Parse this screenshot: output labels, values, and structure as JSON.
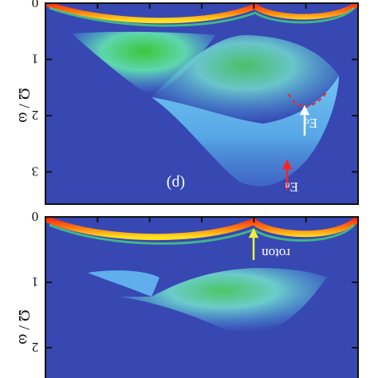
{
  "chart_data": [
    {
      "type": "heatmap",
      "panel_label": "(b)",
      "ylabel": "Ω / ω",
      "ylim": [
        0,
        3.4
      ],
      "y_ticks": [
        "0",
        "1",
        "2",
        "3"
      ],
      "colors": {
        "background": "#3748b3",
        "low": "#4aa9e8",
        "mid": "#6fd0ff",
        "high": "#41c33a",
        "peak": "#ff2a10"
      },
      "dispersion_band": {
        "min_y": 0.0,
        "edge_y": 0.05
      },
      "continuum_top_y": 0.48,
      "continuum_mid_y": 1.75,
      "continuum_bottom_y": 3.35,
      "annotations": [
        {
          "text": "E",
          "subscript": "d",
          "mirrored": true,
          "arrow_color": "#ffffff",
          "dashed_edge_color": "#ff2020"
        },
        {
          "text": "E",
          "subscript": "u",
          "mirrored": true,
          "arrow_color": "#ff2020"
        }
      ]
    },
    {
      "type": "heatmap",
      "ylabel": "Ω / ω",
      "ylim": [
        0,
        2.3
      ],
      "y_ticks": [
        "0",
        "1",
        "2"
      ],
      "colors": {
        "background": "#3748b3",
        "low": "#4aa9e8",
        "mid": "#6fd0ff",
        "high": "#41c33a",
        "peak": "#ff2a10"
      },
      "continuum_top_y": 0.8,
      "continuum_mid_y": 1.2,
      "continuum_bottom_y": 2.1,
      "annotations": [
        {
          "text": "roton",
          "mirrored": true,
          "arrow_color": "#f0f040"
        }
      ]
    }
  ]
}
